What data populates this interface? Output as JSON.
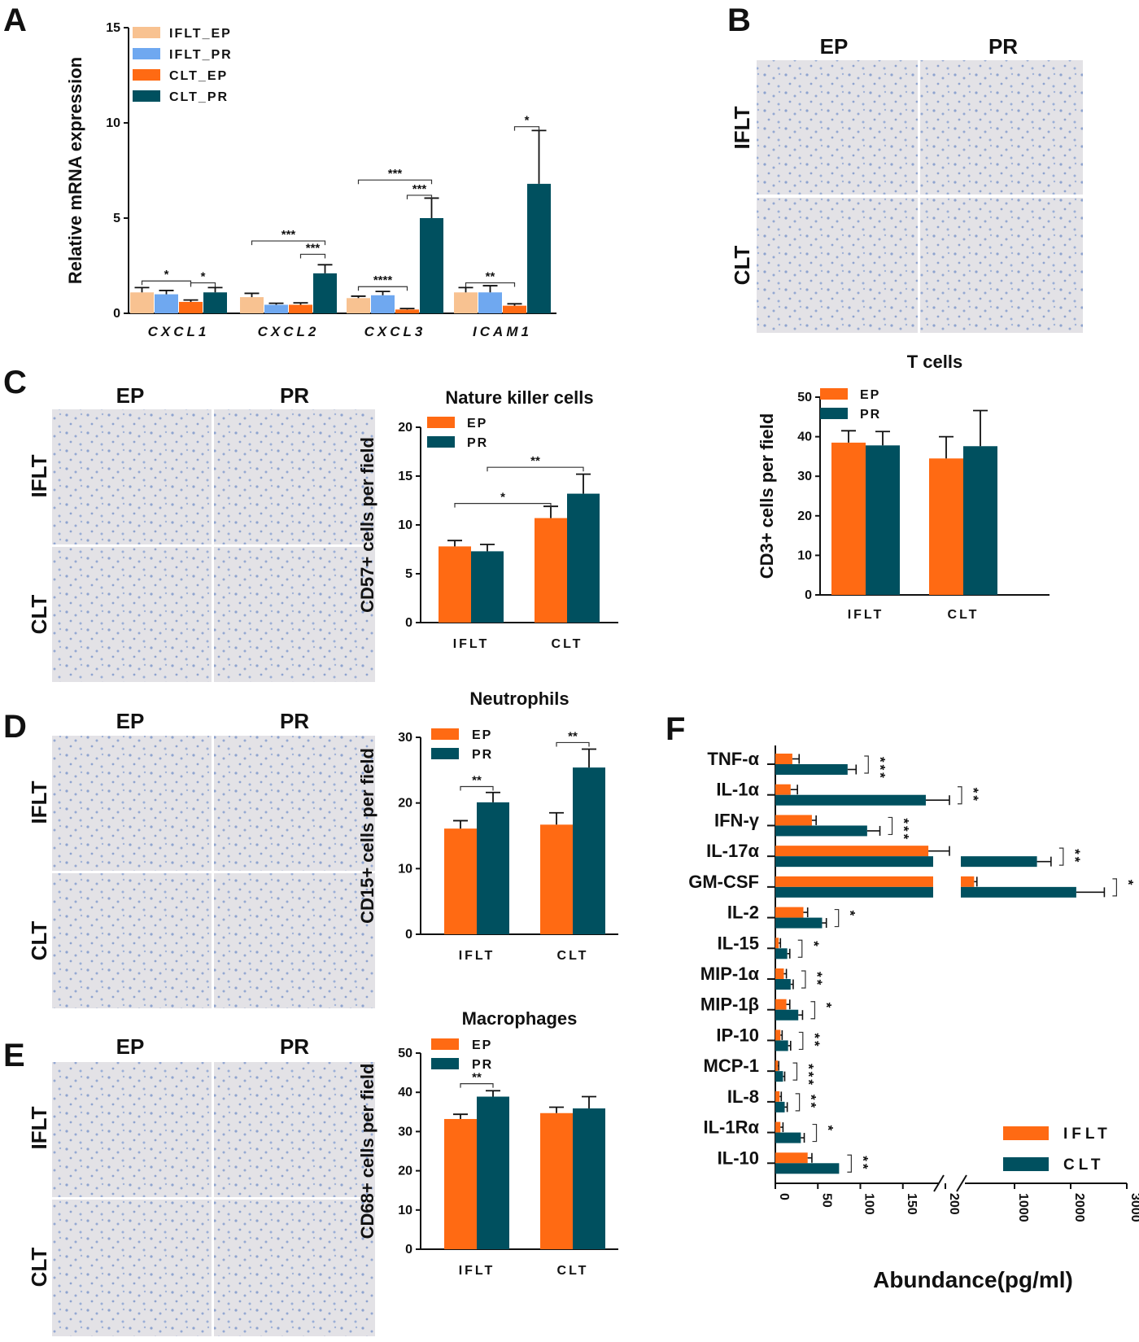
{
  "colors": {
    "iflt_ep": "#f8c291",
    "iflt_pr": "#6fa8f0",
    "clt_ep": "#ff6a13",
    "clt_pr": "#00505f",
    "ep": "#ff6a13",
    "pr": "#00505f",
    "tissue": "#dfe0ea"
  },
  "panels": {
    "A": "A",
    "B": "B",
    "C": "C",
    "D": "D",
    "E": "E",
    "F": "F"
  },
  "micro": {
    "ep": "EP",
    "pr": "PR",
    "iflt": "IFLT",
    "clt": "CLT"
  },
  "chart_data": [
    {
      "id": "A",
      "type": "bar",
      "title": "",
      "ylabel": "Relative mRNA expression",
      "xlabel": "",
      "ylim": [
        0,
        15
      ],
      "yticks": [
        0,
        5,
        10,
        15
      ],
      "categories": [
        "CXCL1",
        "CXCL2",
        "CXCL3",
        "ICAM1"
      ],
      "series": [
        {
          "name": "IFLT_EP",
          "color": "#f8c291",
          "values": [
            1.1,
            0.85,
            0.8,
            1.1
          ],
          "errors": [
            0.25,
            0.2,
            0.1,
            0.25
          ]
        },
        {
          "name": "IFLT_PR",
          "color": "#6fa8f0",
          "values": [
            1.0,
            0.45,
            0.95,
            1.1
          ],
          "errors": [
            0.2,
            0.08,
            0.2,
            0.35
          ]
        },
        {
          "name": "CLT_EP",
          "color": "#ff6a13",
          "values": [
            0.6,
            0.45,
            0.2,
            0.4
          ],
          "errors": [
            0.1,
            0.1,
            0.05,
            0.1
          ]
        },
        {
          "name": "CLT_PR",
          "color": "#00505f",
          "values": [
            1.1,
            2.1,
            5.0,
            6.8
          ],
          "errors": [
            0.25,
            0.45,
            1.05,
            2.8
          ]
        }
      ],
      "significance": [
        {
          "label": "*",
          "cat": 0,
          "from": 0,
          "to": 2,
          "y": 1.7
        },
        {
          "label": "*",
          "cat": 0,
          "from": 2,
          "to": 3,
          "y": 1.6
        },
        {
          "label": "***",
          "cat": 1,
          "from": 0,
          "to": 3,
          "y": 3.8
        },
        {
          "label": "***",
          "cat": 1,
          "from": 2,
          "to": 3,
          "y": 3.1
        },
        {
          "label": "****",
          "cat": 2,
          "from": 0,
          "to": 2,
          "y": 1.4
        },
        {
          "label": "***",
          "cat": 2,
          "from": 0,
          "to": 3,
          "y": 7.0
        },
        {
          "label": "***",
          "cat": 2,
          "from": 2,
          "to": 3,
          "y": 6.2
        },
        {
          "label": "**",
          "cat": 3,
          "from": 0,
          "to": 2,
          "y": 1.6
        },
        {
          "label": "*",
          "cat": 3,
          "from": 2,
          "to": 3,
          "y": 9.8
        }
      ]
    },
    {
      "id": "B",
      "type": "bar",
      "title": "T cells",
      "ylabel": "CD3+ cells per field",
      "xlabel": "",
      "ylim": [
        0,
        50
      ],
      "yticks": [
        0,
        10,
        20,
        30,
        40,
        50
      ],
      "categories": [
        "IFLT",
        "CLT"
      ],
      "series": [
        {
          "name": "EP",
          "color": "#ff6a13",
          "values": [
            38.5,
            34.5
          ],
          "errors": [
            3.0,
            5.5
          ]
        },
        {
          "name": "PR",
          "color": "#00505f",
          "values": [
            37.8,
            37.6
          ],
          "errors": [
            3.5,
            9.0
          ]
        }
      ],
      "significance": []
    },
    {
      "id": "C",
      "type": "bar",
      "title": "Nature killer cells",
      "ylabel": "CD57+ cells per field",
      "xlabel": "",
      "ylim": [
        0,
        20
      ],
      "yticks": [
        0,
        5,
        10,
        15,
        20
      ],
      "categories": [
        "IFLT",
        "CLT"
      ],
      "series": [
        {
          "name": "EP",
          "color": "#ff6a13",
          "values": [
            7.8,
            10.7
          ],
          "errors": [
            0.6,
            1.2
          ]
        },
        {
          "name": "PR",
          "color": "#00505f",
          "values": [
            7.3,
            13.2
          ],
          "errors": [
            0.7,
            2.0
          ]
        }
      ],
      "significance": [
        {
          "label": "*",
          "from": [
            0,
            0
          ],
          "to": [
            1,
            0
          ],
          "y": 12.2
        },
        {
          "label": "**",
          "from": [
            0,
            1
          ],
          "to": [
            1,
            1
          ],
          "y": 15.9
        }
      ]
    },
    {
      "id": "D",
      "type": "bar",
      "title": "Neutrophils",
      "ylabel": "CD15+ cells per field",
      "xlabel": "",
      "ylim": [
        0,
        30
      ],
      "yticks": [
        0,
        10,
        20,
        30
      ],
      "categories": [
        "IFLT",
        "CLT"
      ],
      "series": [
        {
          "name": "EP",
          "color": "#ff6a13",
          "values": [
            16.1,
            16.7
          ],
          "errors": [
            1.2,
            1.8
          ]
        },
        {
          "name": "PR",
          "color": "#00505f",
          "values": [
            20.1,
            25.4
          ],
          "errors": [
            1.5,
            2.8
          ]
        }
      ],
      "significance": [
        {
          "label": "**",
          "from": [
            0,
            0
          ],
          "to": [
            0,
            1
          ],
          "y": 22.5
        },
        {
          "label": "**",
          "from": [
            1,
            0
          ],
          "to": [
            1,
            1
          ],
          "y": 29.2
        }
      ]
    },
    {
      "id": "E",
      "type": "bar",
      "title": "Macrophages",
      "ylabel": "CD68+ cells per field",
      "xlabel": "",
      "ylim": [
        0,
        50
      ],
      "yticks": [
        0,
        10,
        20,
        30,
        40,
        50
      ],
      "categories": [
        "IFLT",
        "CLT"
      ],
      "series": [
        {
          "name": "EP",
          "color": "#ff6a13",
          "values": [
            33.2,
            34.7
          ],
          "errors": [
            1.2,
            1.5
          ]
        },
        {
          "name": "PR",
          "color": "#00505f",
          "values": [
            38.9,
            35.9
          ],
          "errors": [
            1.5,
            3.0
          ]
        }
      ],
      "significance": [
        {
          "label": "**",
          "from": [
            0,
            0
          ],
          "to": [
            0,
            1
          ],
          "y": 42.2
        }
      ]
    },
    {
      "id": "F",
      "type": "bar",
      "orientation": "horizontal",
      "title": "",
      "xlabel": "Abundance(pg/ml)",
      "ylabel": "",
      "xticks": [
        "0",
        "50",
        "100",
        "150",
        "200",
        "1000",
        "2000",
        "3000"
      ],
      "categories": [
        "TNF-α",
        "IL-1α",
        "IFN-γ",
        "IL-17α",
        "GM-CSF",
        "IL-2",
        "IL-15",
        "MIP-1α",
        "MIP-1β",
        "IP-10",
        "MCP-1",
        "IL-8",
        "IL-1Rα",
        "IL-10"
      ],
      "series": [
        {
          "name": "IFLT",
          "color": "#ff6a13",
          "values": [
            20,
            18,
            43,
            180,
            280,
            33,
            4,
            10,
            13,
            6,
            3,
            5,
            6,
            38
          ],
          "errors": [
            8,
            8,
            5,
            40,
            50,
            5,
            2,
            3,
            4,
            2,
            1,
            2,
            3,
            5
          ]
        },
        {
          "name": "CLT",
          "color": "#00505f",
          "values": [
            85,
            177,
            108,
            1400,
            2100,
            55,
            14,
            18,
            27,
            15,
            9,
            11,
            30,
            75
          ],
          "errors": [
            10,
            38,
            15,
            250,
            500,
            5,
            3,
            3,
            5,
            3,
            2,
            3,
            4,
            0
          ]
        }
      ],
      "significance": [
        "***",
        "**",
        "***",
        "**",
        "*",
        "*",
        "*",
        "**",
        "*",
        "**",
        "***",
        "**",
        "*",
        "**"
      ]
    }
  ]
}
